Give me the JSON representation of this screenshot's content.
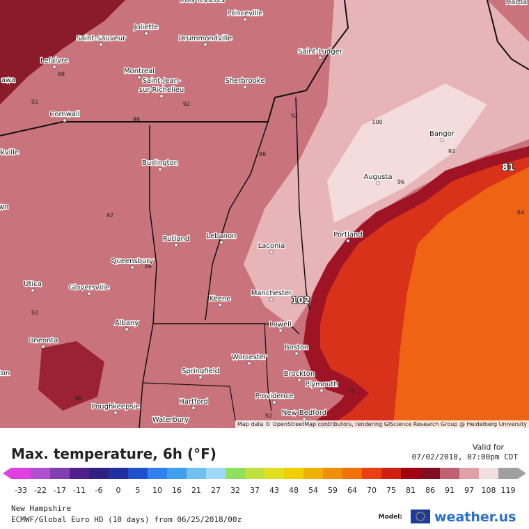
{
  "map": {
    "cities": [
      "Trois-Rivières",
      "Princeville",
      "Joliette",
      "Saint-Sauveur",
      "Drummondville",
      "Lefaivre",
      "Saint-Ludger",
      "Montreal",
      "Saint-Jean-",
      "sur-Richelieu",
      "Sherbrooke",
      "Cornwall",
      "Bangor",
      "Burlington",
      "Augusta",
      "Portland",
      "Rutland",
      "Lebanon",
      "Laconia",
      "Queensbury",
      "Utica",
      "Gloversville",
      "Keene",
      "Manchester",
      "Lowell",
      "Albany",
      "Oneonta",
      "Boston",
      "Worcester",
      "Springfield",
      "Brockton",
      "Plymouth",
      "Hartford",
      "Providence",
      "Poughkeepsie",
      "Waterbury",
      "New Bedford",
      "Hartla",
      "awa",
      "kville",
      "wn",
      "ton"
    ],
    "contour_labels": [
      88,
      92,
      92,
      96,
      92,
      100,
      96,
      92,
      96,
      92,
      96,
      92,
      88,
      102,
      72,
      64,
      81,
      92
    ],
    "attribution": "Map data © OpenStreetMap contributors, rendering GIScience Research Group @ Heidelberg University"
  },
  "legend": {
    "title": "Max. temperature, 6h (°F)",
    "valid_label": "Valid for",
    "valid_time": "07/02/2018, 07:00pm CDT",
    "ticks": [
      -33,
      -22,
      -17,
      -11,
      -6,
      0,
      5,
      10,
      16,
      21,
      27,
      32,
      37,
      43,
      48,
      54,
      59,
      64,
      70,
      75,
      81,
      86,
      91,
      97,
      108,
      119
    ],
    "colors": [
      "#e040e0",
      "#b050d0",
      "#8040b0",
      "#502090",
      "#302080",
      "#2030a0",
      "#2050d0",
      "#3080f0",
      "#40a0f0",
      "#70c0f0",
      "#a0d8f8",
      "#90e060",
      "#c0e040",
      "#e0e020",
      "#f0d000",
      "#f0b000",
      "#f09000",
      "#f07000",
      "#e84010",
      "#d02010",
      "#a00010",
      "#801020",
      "#c06070",
      "#e0a0a8",
      "#f0e0e0",
      "#a0a0a0"
    ],
    "region": "New Hampshire",
    "model_run": "ECMWF/Global Euro HD (10 days) from 06/25/2018/00z",
    "model_label": "Model:",
    "brand": "weather.us"
  }
}
